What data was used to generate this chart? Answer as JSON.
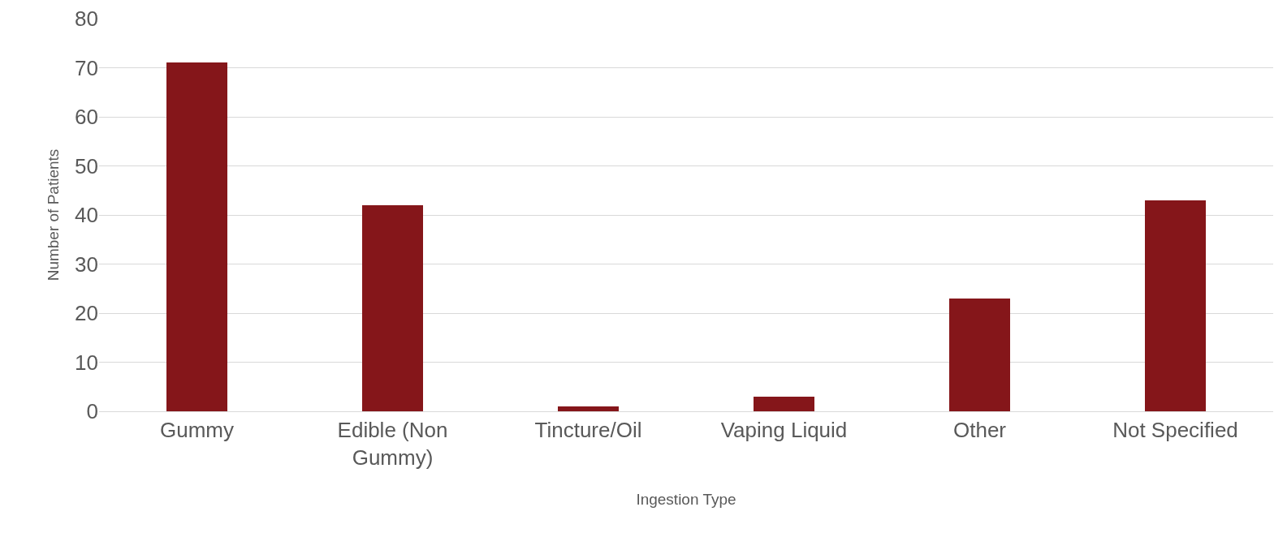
{
  "chart_data": {
    "type": "bar",
    "xlabel": "Ingestion Type",
    "ylabel": "Number of Patients",
    "categories": [
      "Gummy",
      "Edible (Non Gummy)",
      "Tincture/Oil",
      "Vaping Liquid",
      "Other",
      "Not Specified"
    ],
    "values": [
      71,
      42,
      1,
      3,
      23,
      43
    ],
    "color": "#85161a",
    "ylim": [
      0,
      80
    ],
    "yticks": [
      0,
      10,
      20,
      30,
      40,
      50,
      60,
      70,
      80
    ],
    "grid": "y",
    "legend": false
  }
}
